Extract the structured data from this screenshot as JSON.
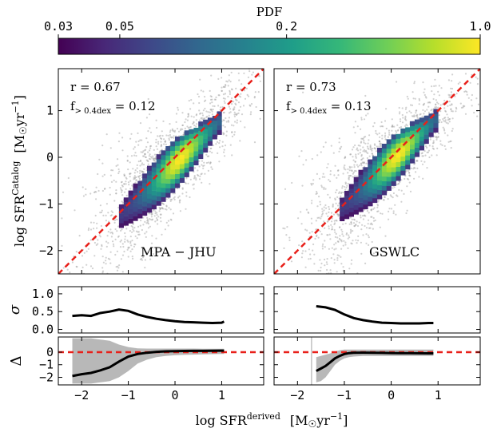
{
  "colorbar": {
    "label": "PDF",
    "ticks": [
      {
        "value": 0.03,
        "label": "0.03"
      },
      {
        "value": 0.05,
        "label": "0.05"
      },
      {
        "value": 0.2,
        "label": "0.2"
      },
      {
        "value": 1.0,
        "label": "1.0"
      }
    ],
    "colormap": [
      "#440154",
      "#482878",
      "#3e4989",
      "#31688e",
      "#26828e",
      "#1f9e89",
      "#35b779",
      "#6ece58",
      "#b5de2b",
      "#fde725"
    ],
    "range": [
      0.03,
      1.0
    ],
    "scale": "log"
  },
  "axes_labels": {
    "ylabel_main": "log SFR^Catalog  [M☉yr⁻¹]",
    "ylabel_main_parts": {
      "prefix": "log SFR",
      "sup": "Catalog",
      "unit_open": "[M",
      "sun": "☉",
      "unit_mid": "yr",
      "unit_sup": "−1",
      "unit_close": "]"
    },
    "xlabel": "log SFR^derived  [M☉yr⁻¹]",
    "xlabel_parts": {
      "prefix": "log SFR",
      "sup": "derived",
      "unit_open": "[M",
      "sun": "☉",
      "unit_mid": "yr",
      "unit_sup": "−1",
      "unit_close": "]"
    },
    "ylabel_sigma": "σ",
    "ylabel_delta": "Δ"
  },
  "colors": {
    "scatter": "#9a9a9a",
    "one_to_one": "#e8201a",
    "median": "#000000",
    "band": "#b8b8b8"
  },
  "chart_data": [
    {
      "id": "mpa",
      "type": "scatter",
      "panel_label": "MPA − JHU",
      "r_label": "r = 0.67",
      "f_label": {
        "prefix": "f",
        "sub": "> 0.4dex",
        "suffix": " = 0.12"
      },
      "xlim": [
        -2.5,
        1.9
      ],
      "ylim": [
        -2.5,
        1.9
      ],
      "xticks": [
        -2,
        -1,
        0,
        1
      ],
      "yticks": [
        -2,
        -1,
        0,
        1
      ],
      "ytick_labels": [
        "−2",
        "−1",
        "0",
        "1"
      ],
      "density_ridge": {
        "x_start": -1.2,
        "x_end": 0.9,
        "slope": 0.95,
        "intercept": -0.15
      },
      "one_to_one": [
        [
          -2.5,
          -2.5
        ],
        [
          1.9,
          1.9
        ]
      ]
    },
    {
      "id": "gswlc",
      "type": "scatter",
      "panel_label": "GSWLC",
      "r_label": "r = 0.73",
      "f_label": {
        "prefix": "f",
        "sub": "> 0.4dex",
        "suffix": " = 0.13"
      },
      "xlim": [
        -2.5,
        1.9
      ],
      "ylim": [
        -2.5,
        1.9
      ],
      "xticks": [
        -2,
        -1,
        0,
        1
      ],
      "yticks": [
        -2,
        -1,
        0,
        1
      ],
      "density_ridge": {
        "x_start": -1.1,
        "x_end": 0.9,
        "slope": 0.95,
        "intercept": -0.1
      },
      "one_to_one": [
        [
          -2.5,
          -2.5
        ],
        [
          1.9,
          1.9
        ]
      ]
    },
    {
      "id": "mpa_sigma",
      "type": "line",
      "ylabel": "σ",
      "ylim": [
        -0.1,
        1.2
      ],
      "yticks": [
        0.0,
        0.5,
        1.0
      ],
      "ytick_labels": [
        "0.0",
        "0.5",
        "1.0"
      ],
      "x": [
        -2.2,
        -2.0,
        -1.8,
        -1.6,
        -1.4,
        -1.2,
        -1.0,
        -0.8,
        -0.6,
        -0.4,
        -0.2,
        0.0,
        0.2,
        0.4,
        0.6,
        0.8,
        1.0,
        1.05
      ],
      "y": [
        0.38,
        0.4,
        0.38,
        0.46,
        0.5,
        0.56,
        0.52,
        0.42,
        0.35,
        0.3,
        0.26,
        0.23,
        0.21,
        0.2,
        0.19,
        0.18,
        0.19,
        0.22
      ]
    },
    {
      "id": "gswlc_sigma",
      "type": "line",
      "ylim": [
        -0.1,
        1.2
      ],
      "yticks": [
        0.0,
        0.5,
        1.0
      ],
      "x": [
        -1.6,
        -1.4,
        -1.2,
        -1.0,
        -0.8,
        -0.6,
        -0.4,
        -0.2,
        0.0,
        0.2,
        0.4,
        0.6,
        0.8,
        0.9
      ],
      "y": [
        0.65,
        0.62,
        0.55,
        0.42,
        0.32,
        0.26,
        0.22,
        0.19,
        0.18,
        0.17,
        0.17,
        0.17,
        0.18,
        0.18
      ]
    },
    {
      "id": "mpa_delta",
      "type": "area",
      "ylabel": "Δ",
      "ylim": [
        -2.6,
        1.2
      ],
      "yticks": [
        -2,
        -1,
        0
      ],
      "ytick_labels": [
        "−2",
        "−1",
        "0"
      ],
      "hline": 0,
      "x": [
        -2.2,
        -2.0,
        -1.8,
        -1.6,
        -1.4,
        -1.2,
        -1.0,
        -0.8,
        -0.6,
        -0.4,
        -0.2,
        0.0,
        0.2,
        0.4,
        0.6,
        0.8,
        1.0,
        1.05
      ],
      "median": [
        -1.9,
        -1.75,
        -1.65,
        -1.45,
        -1.2,
        -0.75,
        -0.35,
        -0.15,
        -0.05,
        0.02,
        0.06,
        0.08,
        0.09,
        0.1,
        0.1,
        0.11,
        0.12,
        0.12
      ],
      "lower": [
        -2.5,
        -2.5,
        -2.5,
        -2.4,
        -2.3,
        -2.0,
        -1.5,
        -0.9,
        -0.6,
        -0.4,
        -0.3,
        -0.25,
        -0.22,
        -0.2,
        -0.18,
        -0.16,
        -0.15,
        -0.15
      ],
      "upper": [
        1.1,
        1.1,
        1.1,
        1.0,
        0.9,
        0.6,
        0.4,
        0.3,
        0.28,
        0.28,
        0.28,
        0.28,
        0.28,
        0.28,
        0.27,
        0.27,
        0.27,
        0.27
      ]
    },
    {
      "id": "gswlc_delta",
      "type": "area",
      "ylim": [
        -2.6,
        1.2
      ],
      "yticks": [
        -2,
        -1,
        0
      ],
      "hline": 0,
      "vline_x": -1.7,
      "x": [
        -1.6,
        -1.5,
        -1.4,
        -1.3,
        -1.2,
        -1.1,
        -1.0,
        -0.9,
        -0.8,
        -0.6,
        -0.4,
        -0.2,
        0.0,
        0.2,
        0.4,
        0.6,
        0.8,
        0.9
      ],
      "median": [
        -1.5,
        -1.3,
        -1.1,
        -0.8,
        -0.5,
        -0.3,
        -0.15,
        -0.08,
        -0.05,
        -0.04,
        -0.05,
        -0.06,
        -0.07,
        -0.08,
        -0.08,
        -0.09,
        -0.1,
        -0.1
      ],
      "lower": [
        -2.4,
        -2.3,
        -2.0,
        -1.5,
        -1.0,
        -0.7,
        -0.5,
        -0.4,
        -0.35,
        -0.3,
        -0.3,
        -0.3,
        -0.3,
        -0.3,
        -0.3,
        -0.3,
        -0.3,
        -0.3
      ],
      "upper": [
        -0.4,
        -0.3,
        -0.2,
        -0.1,
        0.05,
        0.15,
        0.2,
        0.2,
        0.2,
        0.2,
        0.2,
        0.2,
        0.2,
        0.2,
        0.2,
        0.2,
        0.2,
        0.2
      ]
    }
  ],
  "shared_xticks": {
    "values": [
      -2,
      -1,
      0,
      1
    ],
    "labels": [
      "−2",
      "−1",
      "0",
      "1"
    ]
  }
}
